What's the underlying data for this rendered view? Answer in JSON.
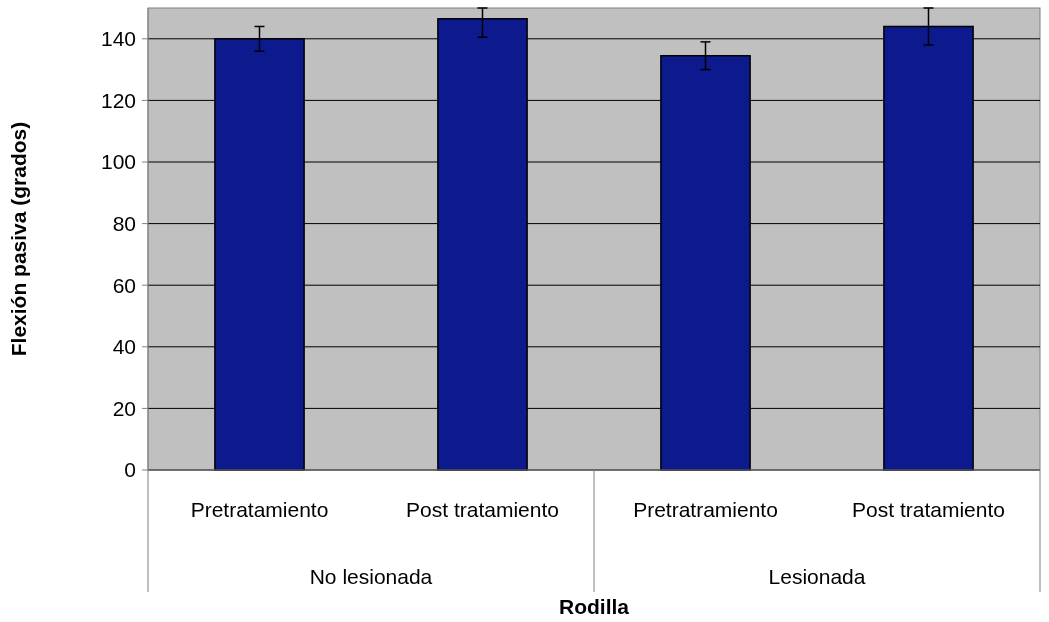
{
  "chart_data": {
    "type": "bar",
    "xlabel": "Rodilla",
    "ylabel": "Flexión pasiva (grados)",
    "categories": [
      "Pretratamiento",
      "Post tratamiento",
      "Pretratramiento",
      "Post tratamiento"
    ],
    "values": [
      140,
      146.5,
      134.5,
      144
    ],
    "errors": [
      4,
      [
        140.5,
        150
      ],
      4.5,
      6
    ],
    "color": "#0c1a8e",
    "annotations": [
      "No lesionada",
      "Lesionada"
    ],
    "ylim": [
      0,
      150
    ],
    "yticks": [
      0,
      20,
      40,
      60,
      80,
      100,
      120,
      140
    ],
    "grid": "y"
  }
}
